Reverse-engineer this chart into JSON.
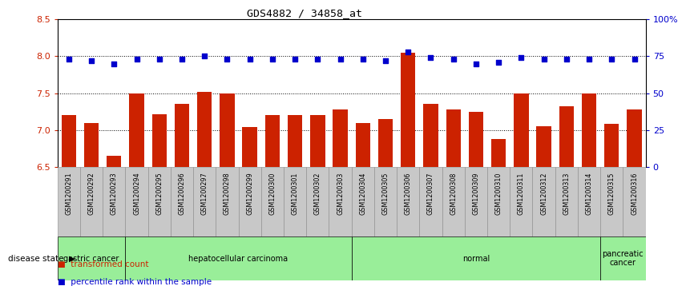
{
  "title": "GDS4882 / 34858_at",
  "samples": [
    "GSM1200291",
    "GSM1200292",
    "GSM1200293",
    "GSM1200294",
    "GSM1200295",
    "GSM1200296",
    "GSM1200297",
    "GSM1200298",
    "GSM1200299",
    "GSM1200300",
    "GSM1200301",
    "GSM1200302",
    "GSM1200303",
    "GSM1200304",
    "GSM1200305",
    "GSM1200306",
    "GSM1200307",
    "GSM1200308",
    "GSM1200309",
    "GSM1200310",
    "GSM1200311",
    "GSM1200312",
    "GSM1200313",
    "GSM1200314",
    "GSM1200315",
    "GSM1200316"
  ],
  "bar_values": [
    7.2,
    7.1,
    6.65,
    7.5,
    7.22,
    7.35,
    7.52,
    7.5,
    7.04,
    7.2,
    7.2,
    7.2,
    7.28,
    7.1,
    7.15,
    8.05,
    7.35,
    7.28,
    7.25,
    6.88,
    7.5,
    7.05,
    7.32,
    7.5,
    7.08,
    7.28
  ],
  "percentile_values": [
    73,
    72,
    70,
    73,
    73,
    73,
    75,
    73,
    73,
    73,
    73,
    73,
    73,
    73,
    72,
    78,
    74,
    73,
    70,
    71,
    74,
    73,
    73,
    73,
    73,
    73
  ],
  "ylim_left": [
    6.5,
    8.5
  ],
  "ylim_right": [
    0,
    100
  ],
  "bar_color": "#CC2200",
  "dot_color": "#0000CC",
  "grid_lines": [
    7.0,
    7.5,
    8.0
  ],
  "disease_groups": [
    {
      "label": "gastric cancer",
      "start": 0,
      "end": 3
    },
    {
      "label": "hepatocellular carcinoma",
      "start": 3,
      "end": 13
    },
    {
      "label": "normal",
      "start": 13,
      "end": 24
    },
    {
      "label": "pancreatic\ncancer",
      "start": 24,
      "end": 26
    }
  ],
  "legend_bar_label": "transformed count",
  "legend_dot_label": "percentile rank within the sample",
  "disease_state_label": "disease state",
  "background_color": "#FFFFFF",
  "plot_bg_color": "#FFFFFF",
  "tick_color_left": "#CC2200",
  "tick_color_right": "#0000CC",
  "left_ticks": [
    6.5,
    7.0,
    7.5,
    8.0,
    8.5
  ],
  "right_ticks": [
    0,
    25,
    50,
    75,
    100
  ],
  "right_tick_labels": [
    "0",
    "25",
    "50",
    "75",
    "100%"
  ],
  "gray_cell_color": "#C8C8C8",
  "gray_cell_border": "#888888",
  "green_light": "#AAFFAA",
  "green_dark_border": "#33AA33",
  "gastric_green": "#BBEEBB",
  "normal_green": "#88EE88"
}
